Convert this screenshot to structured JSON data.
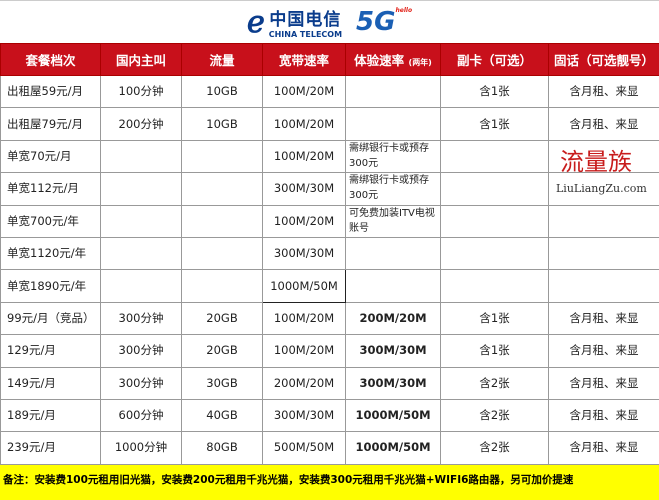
{
  "logo": {
    "brand_cn": "中国电信",
    "brand_en": "CHINA TELECOM",
    "badge": "5G",
    "badge_sub": "hello"
  },
  "headers": [
    "套餐档次",
    "国内主叫",
    "流量",
    "宽带速率",
    "体验速率",
    "副卡（可选）",
    "固话（可选靓号）"
  ],
  "header_note": "(两年)",
  "rows": [
    [
      "出租屋59元/月",
      "100分钟",
      "10GB",
      "100M/20M",
      "",
      "含1张",
      "含月租、来显"
    ],
    [
      "出租屋79元/月",
      "200分钟",
      "10GB",
      "100M/20M",
      "",
      "含1张",
      "含月租、来显"
    ],
    [
      "单宽70元/月",
      "",
      "",
      "100M/20M",
      "需绑银行卡或预存300元",
      "",
      ""
    ],
    [
      "单宽112元/月",
      "",
      "",
      "300M/30M",
      "需绑银行卡或预存300元",
      "",
      ""
    ],
    [
      "单宽700元/年",
      "",
      "",
      "100M/20M",
      "可免费加装ITV电视账号",
      "",
      ""
    ],
    [
      "单宽1120元/年",
      "",
      "",
      "300M/30M",
      "",
      "",
      ""
    ],
    [
      "单宽1890元/年",
      "",
      "",
      "1000M/50M",
      "",
      "",
      ""
    ],
    [
      "99元/月（竞品）",
      "300分钟",
      "20GB",
      "100M/20M",
      "200M/20M",
      "含1张",
      "含月租、来显"
    ],
    [
      "129元/月",
      "300分钟",
      "20GB",
      "100M/20M",
      "300M/30M",
      "含1张",
      "含月租、来显"
    ],
    [
      "149元/月",
      "300分钟",
      "30GB",
      "200M/20M",
      "300M/30M",
      "含2张",
      "含月租、来显"
    ],
    [
      "189元/月",
      "600分钟",
      "40GB",
      "300M/30M",
      "1000M/50M",
      "含2张",
      "含月租、来显"
    ],
    [
      "239元/月",
      "1000分钟",
      "80GB",
      "500M/50M",
      "1000M/50M",
      "含2张",
      "含月租、来显"
    ]
  ],
  "footer": "备注：安装费100元租用旧光猫，安装费200元租用千兆光猫，安装费300元租用千兆光猫+WIFI6路由器，另可加价提速",
  "watermark": {
    "text": "流量族",
    "url": "LiuLiangZu.com"
  },
  "colors": {
    "header_bg": "#c8101b",
    "footer_bg": "#ffff00",
    "brand_blue": "#0a3c8c"
  }
}
